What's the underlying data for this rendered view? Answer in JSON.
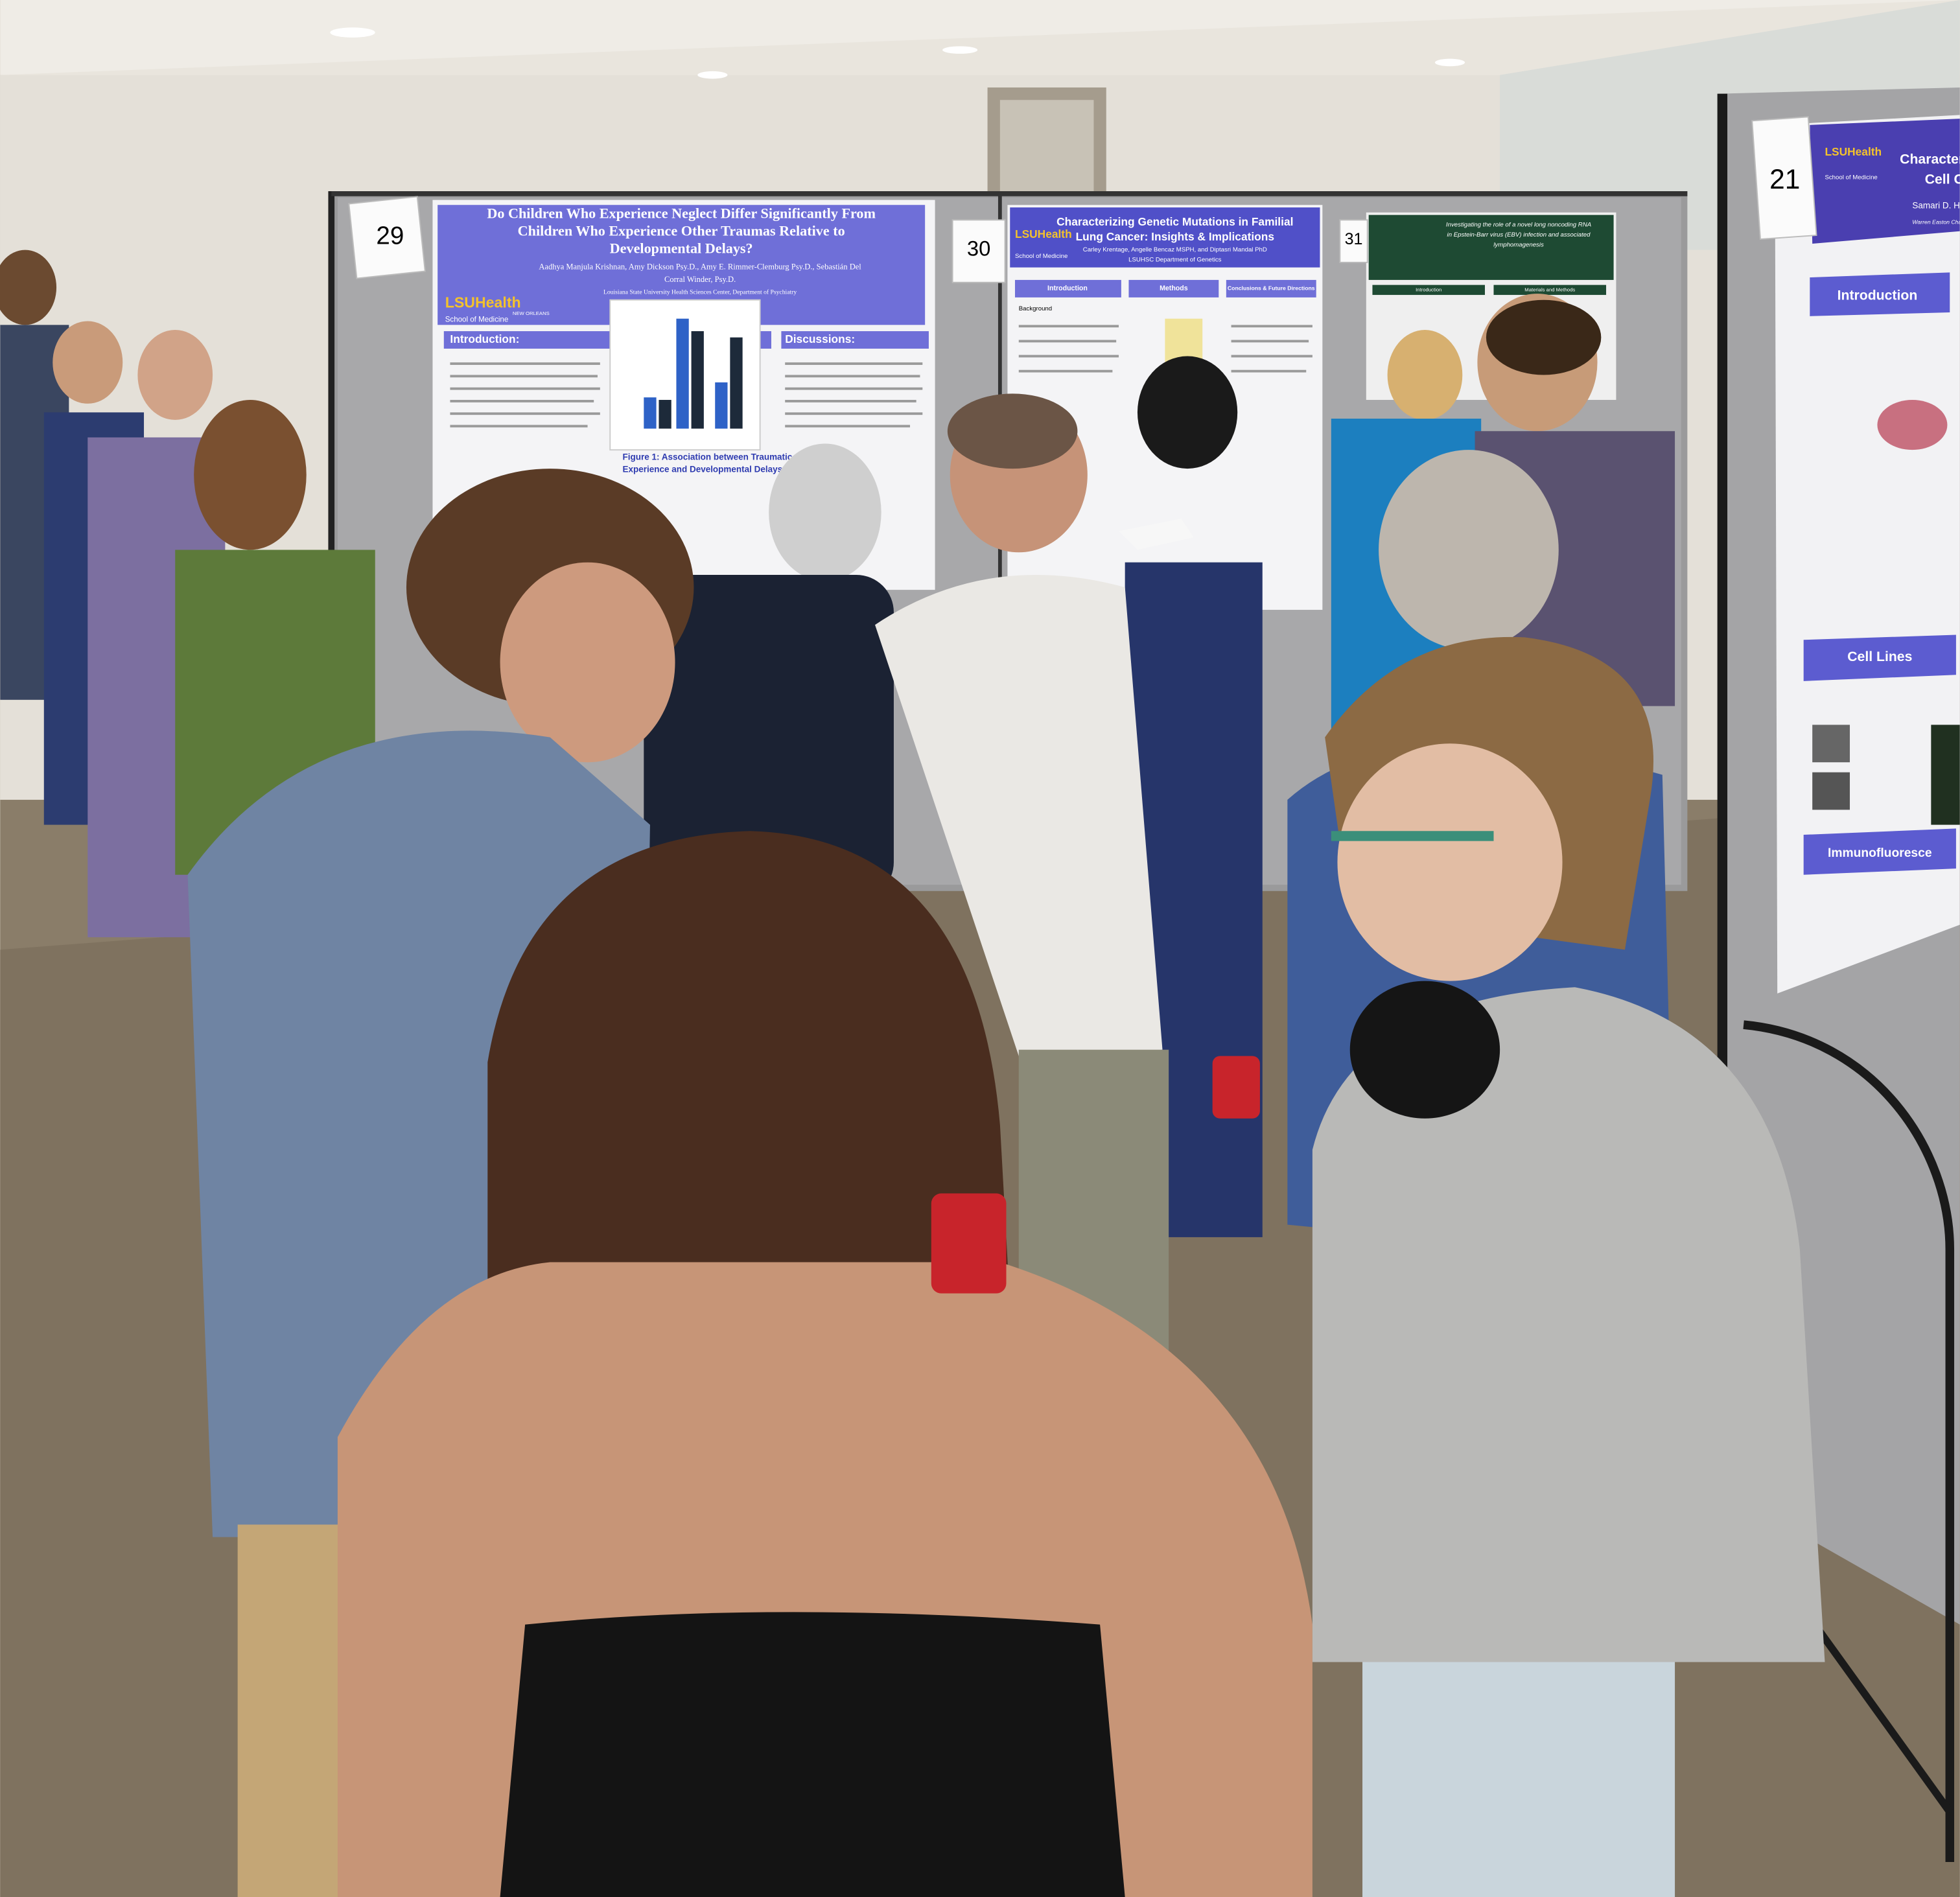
{
  "posters": [
    {
      "number": "29",
      "title_lines": [
        "Do Children Who Experience Neglect Differ Significantly From",
        "Children Who Experience Other Traumas Relative to",
        "Developmental Delays?"
      ],
      "author_lines": [
        "Aadhya Manjula Krishnan, Amy Dickson Psy.D., Amy E. Rimmer-Clemburg Psy.D., Sebastián Del",
        "Corral Winder, Psy.D."
      ],
      "affiliation": "Louisiana State University Health Sciences Center, Department of Psychiatry",
      "logo": "LSUHealth",
      "logo_sub": "NEW ORLEANS",
      "school": "School of Medicine",
      "sections": [
        "Introduction:",
        "Discussions:"
      ],
      "figure_caption_lines": [
        "Figure 1: Association between Traumatic",
        "Experience and Developmental Delays"
      ]
    },
    {
      "number": "30",
      "title_lines": [
        "Characterizing Genetic Mutations in Familial",
        "Lung Cancer: Insights & Implications"
      ],
      "author_lines": [
        "Carley Krentage, Angelle Bencaz MSPH, and Diptasri Mandal PhD",
        "LSUHSC Department of Genetics"
      ],
      "logo": "LSUHealth",
      "school": "School of Medicine",
      "sections": [
        "Introduction",
        "Methods",
        "Conclusions & Future Directions"
      ],
      "subheading": "Background"
    },
    {
      "number": "31",
      "title_lines": [
        "Investigating the role of a novel long noncoding RNA",
        "in Epstein-Barr virus (EBV) infection and associated",
        "lymphomagenesis"
      ],
      "sections": [
        "Introduction",
        "Materials and Methods"
      ]
    },
    {
      "number": "21",
      "title_lines": [
        "Characterizatio",
        "Cell Car"
      ],
      "author_lines": [
        "Samari D. Harris",
        "Warren Easton Charter High School"
      ],
      "logo": "LSUHealth",
      "school": "School of Medicine",
      "sections": [
        "Introduction",
        "Cell Lines",
        "Immunofluoresce"
      ]
    }
  ]
}
